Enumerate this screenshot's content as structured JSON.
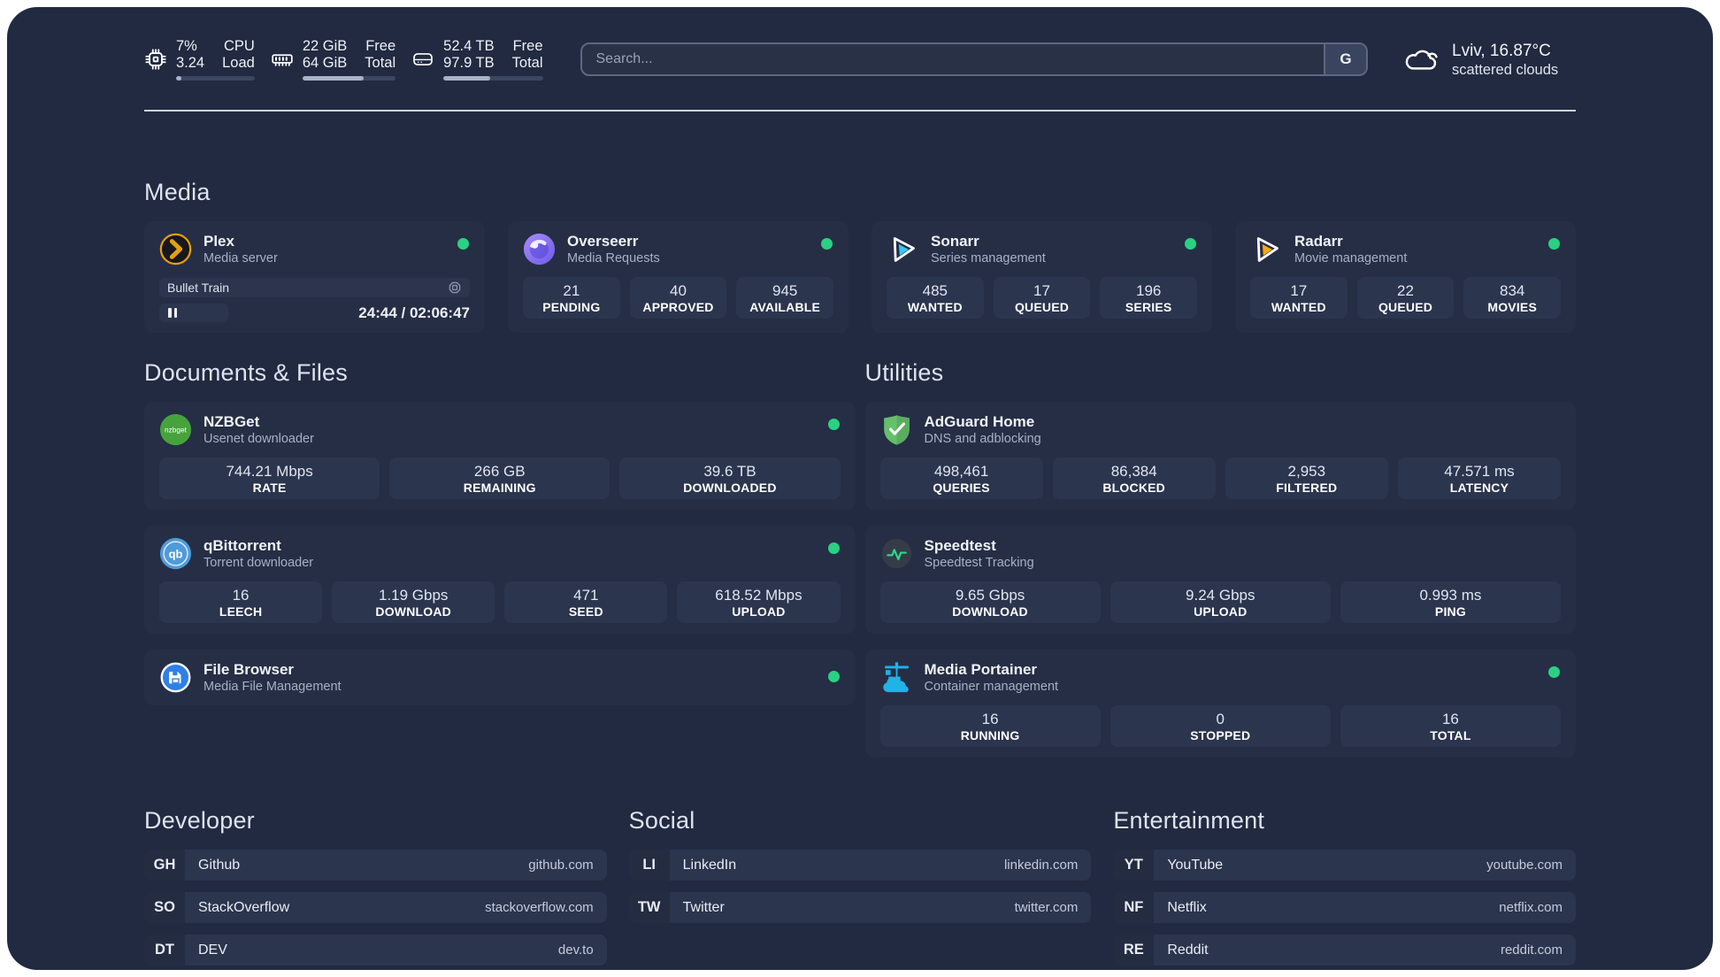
{
  "header": {
    "system_stats": [
      {
        "icon": "cpu-icon",
        "values": [
          "7%",
          "3.24"
        ],
        "labels": [
          "CPU",
          "Load"
        ],
        "progress_percent": 7
      },
      {
        "icon": "memory-icon",
        "values": [
          "22 GiB",
          "64 GiB"
        ],
        "labels": [
          "Free",
          "Total"
        ],
        "progress_percent": 66
      },
      {
        "icon": "storage-icon",
        "values": [
          "52.4 TB",
          "97.9 TB"
        ],
        "labels": [
          "Free",
          "Total"
        ],
        "progress_percent": 47
      }
    ],
    "search": {
      "placeholder": "Search...",
      "engine_button_label": "G"
    },
    "weather": {
      "icon": "cloud-icon",
      "location": "Lviv, 16.87°C",
      "condition": "scattered clouds"
    }
  },
  "sections": {
    "media_title": "Media",
    "documents_title": "Documents & Files",
    "utilities_title": "Utilities",
    "developer_title": "Developer",
    "social_title": "Social",
    "entertainment_title": "Entertainment"
  },
  "apps": {
    "plex": {
      "icon": "plex-icon",
      "name": "Plex",
      "description": "Media server",
      "status": "online",
      "now_playing": {
        "title": "Bullet Train",
        "progress_time": "24:44 / 02:06:47"
      }
    },
    "overseerr": {
      "icon": "overseerr-icon",
      "name": "Overseerr",
      "description": "Media Requests",
      "status": "online",
      "stats": [
        {
          "value": "21",
          "label": "PENDING"
        },
        {
          "value": "40",
          "label": "APPROVED"
        },
        {
          "value": "945",
          "label": "AVAILABLE"
        }
      ]
    },
    "sonarr": {
      "icon": "sonarr-icon",
      "name": "Sonarr",
      "description": "Series management",
      "status": "online",
      "stats": [
        {
          "value": "485",
          "label": "WANTED"
        },
        {
          "value": "17",
          "label": "QUEUED"
        },
        {
          "value": "196",
          "label": "SERIES"
        }
      ]
    },
    "radarr": {
      "icon": "radarr-icon",
      "name": "Radarr",
      "description": "Movie management",
      "status": "online",
      "stats": [
        {
          "value": "17",
          "label": "WANTED"
        },
        {
          "value": "22",
          "label": "QUEUED"
        },
        {
          "value": "834",
          "label": "MOVIES"
        }
      ]
    },
    "nzbget": {
      "icon": "nzbget-icon",
      "name": "NZBGet",
      "description": "Usenet downloader",
      "status": "online",
      "stats": [
        {
          "value": "744.21 Mbps",
          "label": "RATE"
        },
        {
          "value": "266 GB",
          "label": "REMAINING"
        },
        {
          "value": "39.6 TB",
          "label": "DOWNLOADED"
        }
      ]
    },
    "qbittorrent": {
      "icon": "qbittorrent-icon",
      "name": "qBittorrent",
      "description": "Torrent downloader",
      "status": "online",
      "stats": [
        {
          "value": "16",
          "label": "LEECH"
        },
        {
          "value": "1.19 Gbps",
          "label": "DOWNLOAD"
        },
        {
          "value": "471",
          "label": "SEED"
        },
        {
          "value": "618.52 Mbps",
          "label": "UPLOAD"
        }
      ]
    },
    "filebrowser": {
      "icon": "filebrowser-icon",
      "name": "File Browser",
      "description": "Media File Management",
      "status": "online"
    },
    "adguard": {
      "icon": "adguard-icon",
      "name": "AdGuard Home",
      "description": "DNS and adblocking",
      "stats": [
        {
          "value": "498,461",
          "label": "QUERIES"
        },
        {
          "value": "86,384",
          "label": "BLOCKED"
        },
        {
          "value": "2,953",
          "label": "FILTERED"
        },
        {
          "value": "47.571 ms",
          "label": "LATENCY"
        }
      ]
    },
    "speedtest": {
      "icon": "speedtest-icon",
      "name": "Speedtest",
      "description": "Speedtest Tracking",
      "stats": [
        {
          "value": "9.65 Gbps",
          "label": "DOWNLOAD"
        },
        {
          "value": "9.24 Gbps",
          "label": "UPLOAD"
        },
        {
          "value": "0.993 ms",
          "label": "PING"
        }
      ]
    },
    "portainer": {
      "icon": "portainer-icon",
      "name": "Media Portainer",
      "description": "Container management",
      "status": "online",
      "stats": [
        {
          "value": "16",
          "label": "RUNNING"
        },
        {
          "value": "0",
          "label": "STOPPED"
        },
        {
          "value": "16",
          "label": "TOTAL"
        }
      ]
    }
  },
  "links": {
    "developer": [
      {
        "abbr": "GH",
        "name": "Github",
        "url": "github.com"
      },
      {
        "abbr": "SO",
        "name": "StackOverflow",
        "url": "stackoverflow.com"
      },
      {
        "abbr": "DT",
        "name": "DEV",
        "url": "dev.to"
      }
    ],
    "social": [
      {
        "abbr": "LI",
        "name": "LinkedIn",
        "url": "linkedin.com"
      },
      {
        "abbr": "TW",
        "name": "Twitter",
        "url": "twitter.com"
      }
    ],
    "entertainment": [
      {
        "abbr": "YT",
        "name": "YouTube",
        "url": "youtube.com"
      },
      {
        "abbr": "NF",
        "name": "Netflix",
        "url": "netflix.com"
      },
      {
        "abbr": "RE",
        "name": "Reddit",
        "url": "reddit.com"
      }
    ]
  },
  "colors": {
    "window_background": "#212a40",
    "card_background": "#262e45",
    "tile_background": "#2c354e",
    "status_online": "#2ad183",
    "plex_accent": "#e5a00d",
    "sonarr_accent": "#38c6f4",
    "radarr_accent": "#f7a910",
    "portainer_accent": "#1fb3e8"
  }
}
